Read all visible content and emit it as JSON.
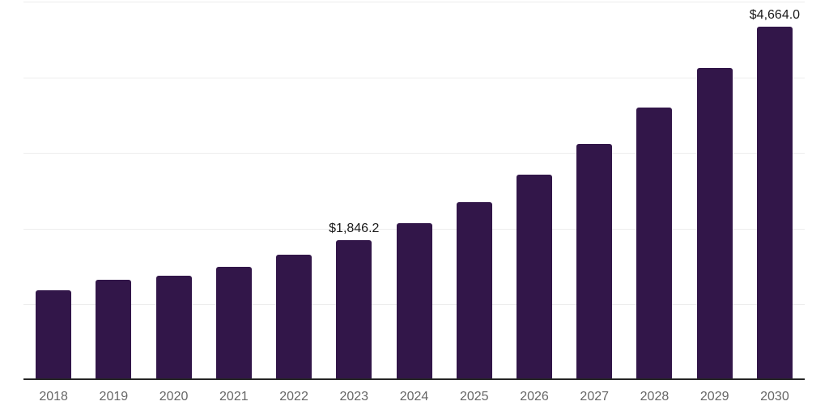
{
  "chart_data": {
    "type": "bar",
    "title": "",
    "xlabel": "",
    "ylabel": "",
    "categories": [
      "2018",
      "2019",
      "2020",
      "2021",
      "2022",
      "2023",
      "2024",
      "2025",
      "2026",
      "2027",
      "2028",
      "2029",
      "2030"
    ],
    "values": [
      1190,
      1320,
      1375,
      1500,
      1660,
      1846.2,
      2070,
      2355,
      2715,
      3120,
      3600,
      4120,
      4664
    ],
    "data_labels": {
      "2023": "$1,846.2",
      "2030": "$4,664.0"
    },
    "ylim": [
      0,
      5000
    ],
    "gridline_interval": 1000,
    "grid": "horizontal light gridlines, no y-axis tick labels",
    "legend_position": "none",
    "colors": {
      "bar": "#321649",
      "gridline": "#ededed",
      "x_axis_line": "#262626",
      "x_tick_label": "#666666",
      "data_label": "#1a1a1a",
      "background": "#ffffff"
    }
  }
}
